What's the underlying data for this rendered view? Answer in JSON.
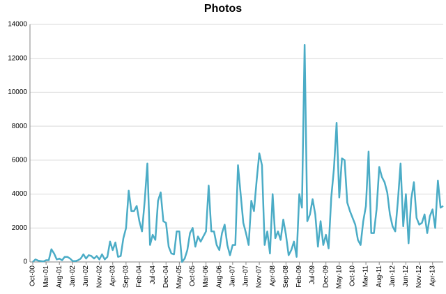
{
  "chart_data": {
    "type": "line",
    "title": "Photos",
    "categories": [
      "Oct-00",
      null,
      null,
      null,
      null,
      "Mar-01",
      null,
      null,
      null,
      null,
      "Aug-01",
      null,
      null,
      null,
      null,
      "Jan-02",
      null,
      null,
      null,
      null,
      "Jun-02",
      null,
      null,
      null,
      null,
      "Nov-02",
      null,
      null,
      null,
      null,
      "Apr-03",
      null,
      null,
      null,
      null,
      "Sep-03",
      null,
      null,
      null,
      null,
      "Feb-04",
      null,
      null,
      null,
      null,
      "Jul-04",
      null,
      null,
      null,
      null,
      "Dec-04",
      null,
      null,
      null,
      null,
      "May-05",
      null,
      null,
      null,
      null,
      "Oct-05",
      null,
      null,
      null,
      null,
      "Mar-06",
      null,
      null,
      null,
      null,
      "Aug-06",
      null,
      null,
      null,
      null,
      "Jan-07",
      null,
      null,
      null,
      null,
      "Jun-07",
      null,
      null,
      null,
      null,
      "Nov-07",
      null,
      null,
      null,
      null,
      "Apr-08",
      null,
      null,
      null,
      null,
      "Sep-08",
      null,
      null,
      null,
      null,
      "Feb-09",
      null,
      null,
      null,
      null,
      "Jul-09",
      null,
      null,
      null,
      null,
      "Dec-09",
      null,
      null,
      null,
      null,
      "May-10",
      null,
      null,
      null,
      null,
      "Oct-10",
      null,
      null,
      null,
      null,
      "Mar-11",
      null,
      null,
      null,
      null,
      "Aug-11",
      null,
      null,
      null,
      null,
      "Jan-12",
      null,
      null,
      null,
      null,
      "Jun-12",
      null,
      null,
      null,
      null,
      "Nov-12",
      null,
      null,
      null,
      null,
      "Apr-13",
      null,
      null,
      null,
      null
    ],
    "series": [
      {
        "name": "Photos",
        "color": "#4bacc6",
        "values": [
          0,
          150,
          80,
          50,
          30,
          100,
          100,
          750,
          500,
          150,
          200,
          100,
          300,
          300,
          200,
          50,
          50,
          100,
          200,
          450,
          200,
          400,
          350,
          200,
          350,
          150,
          450,
          150,
          300,
          1200,
          700,
          1150,
          300,
          350,
          1400,
          2000,
          4200,
          3000,
          3000,
          3300,
          2400,
          1800,
          3600,
          5800,
          1000,
          1600,
          1300,
          3600,
          4100,
          2400,
          2300,
          900,
          500,
          450,
          1800,
          1800,
          0,
          200,
          700,
          1700,
          2000,
          900,
          1500,
          1200,
          1500,
          1800,
          4500,
          1800,
          1800,
          1000,
          700,
          1700,
          2200,
          1000,
          400,
          1000,
          1000,
          5700,
          4000,
          2300,
          1700,
          1000,
          3600,
          3000,
          4800,
          6400,
          5700,
          1000,
          1800,
          500,
          4000,
          1400,
          1800,
          1300,
          2500,
          1600,
          400,
          700,
          1200,
          300,
          4000,
          3200,
          12800,
          2400,
          2800,
          3700,
          2800,
          900,
          2400,
          1000,
          1600,
          800,
          3800,
          5500,
          8200,
          3800,
          6100,
          6000,
          3500,
          3000,
          2600,
          2200,
          1300,
          1000,
          2400,
          3300,
          6500,
          1700,
          1700,
          3100,
          5600,
          5000,
          4700,
          4100,
          2800,
          2100,
          1800,
          3600,
          5800,
          2100,
          4000,
          1100,
          3700,
          4700,
          2600,
          2200,
          2300,
          2800,
          1700,
          2700,
          3100,
          2000,
          4800,
          3200,
          3300
        ]
      }
    ],
    "ylim": [
      0,
      14000
    ],
    "yticks": [
      0,
      2000,
      4000,
      6000,
      8000,
      10000,
      12000,
      14000
    ],
    "grid": true
  }
}
